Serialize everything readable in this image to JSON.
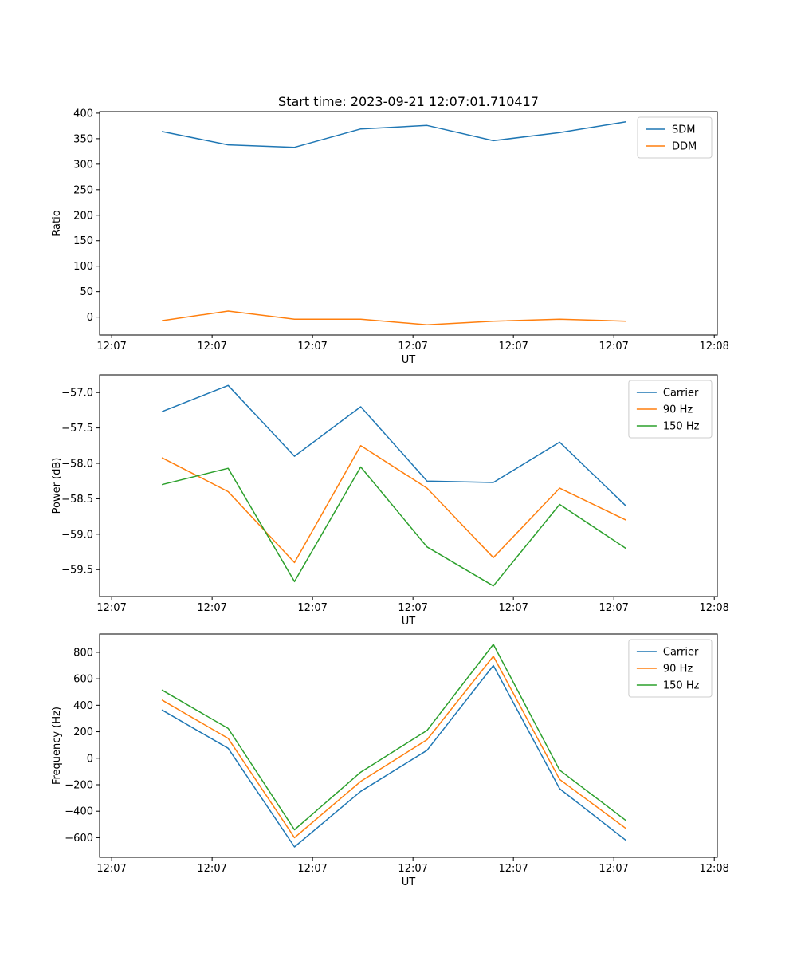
{
  "figure": {
    "background": "#ffffff",
    "title": "Start time: 2023-09-21 12:07:01.710417"
  },
  "chart_data": [
    {
      "type": "line",
      "title": "Start time: 2023-09-21 12:07:01.710417",
      "xlabel": "UT",
      "ylabel": "Ratio",
      "x": [
        5,
        11.6,
        18.2,
        24.8,
        31.4,
        38,
        44.6,
        51.2
      ],
      "xlim": [
        -1.2,
        60.3
      ],
      "xticks": [
        0,
        10,
        20,
        30,
        40,
        50,
        60
      ],
      "xtick_labels": [
        "12:07",
        "12:07",
        "12:07",
        "12:07",
        "12:07",
        "12:07",
        "12:08"
      ],
      "ylim": [
        -35,
        403
      ],
      "yticks": [
        0,
        50,
        100,
        150,
        200,
        250,
        300,
        350,
        400
      ],
      "ytick_labels": [
        "0",
        "50",
        "100",
        "150",
        "200",
        "250",
        "300",
        "350",
        "400"
      ],
      "grid": false,
      "legend_position": "upper right",
      "series": [
        {
          "name": "SDM",
          "color": "#1f77b4",
          "values": [
            364,
            338,
            333,
            369,
            376,
            346,
            362,
            383
          ]
        },
        {
          "name": "DDM",
          "color": "#ff7f0e",
          "values": [
            -7,
            12,
            -4,
            -4,
            -15,
            -8,
            -4,
            -8
          ]
        }
      ]
    },
    {
      "type": "line",
      "title": "",
      "xlabel": "UT",
      "ylabel": "Power (dB)",
      "x": [
        5,
        11.6,
        18.2,
        24.8,
        31.4,
        38,
        44.6,
        51.2
      ],
      "xlim": [
        -1.2,
        60.3
      ],
      "xticks": [
        0,
        10,
        20,
        30,
        40,
        50,
        60
      ],
      "xtick_labels": [
        "12:07",
        "12:07",
        "12:07",
        "12:07",
        "12:07",
        "12:07",
        "12:08"
      ],
      "ylim": [
        -59.88,
        -56.75
      ],
      "yticks": [
        -59.5,
        -59.0,
        -58.5,
        -58.0,
        -57.5,
        -57.0
      ],
      "ytick_labels": [
        "−59.5",
        "−59.0",
        "−58.5",
        "−58.0",
        "−57.5",
        "−57.0"
      ],
      "grid": false,
      "legend_position": "upper right",
      "series": [
        {
          "name": "Carrier",
          "color": "#1f77b4",
          "values": [
            -57.27,
            -56.9,
            -57.9,
            -57.2,
            -58.25,
            -58.27,
            -57.7,
            -58.6
          ]
        },
        {
          "name": "90 Hz",
          "color": "#ff7f0e",
          "values": [
            -57.92,
            -58.4,
            -59.4,
            -57.75,
            -58.35,
            -59.33,
            -58.35,
            -58.8
          ]
        },
        {
          "name": "150 Hz",
          "color": "#2ca02c",
          "values": [
            -58.3,
            -58.07,
            -59.67,
            -58.05,
            -59.18,
            -59.73,
            -58.58,
            -59.2
          ]
        }
      ]
    },
    {
      "type": "line",
      "title": "",
      "xlabel": "UT",
      "ylabel": "Frequency (Hz)",
      "x": [
        5,
        11.6,
        18.2,
        24.8,
        31.4,
        38,
        44.6,
        51.2
      ],
      "xlim": [
        -1.2,
        60.3
      ],
      "xticks": [
        0,
        10,
        20,
        30,
        40,
        50,
        60
      ],
      "xtick_labels": [
        "12:07",
        "12:07",
        "12:07",
        "12:07",
        "12:07",
        "12:07",
        "12:08"
      ],
      "ylim": [
        -748,
        938
      ],
      "yticks": [
        -600,
        -400,
        -200,
        0,
        200,
        400,
        600,
        800
      ],
      "ytick_labels": [
        "−600",
        "−400",
        "−200",
        "0",
        "200",
        "400",
        "600",
        "800"
      ],
      "grid": false,
      "legend_position": "upper right",
      "series": [
        {
          "name": "Carrier",
          "color": "#1f77b4",
          "values": [
            365,
            75,
            -670,
            -250,
            60,
            700,
            -230,
            -620
          ]
        },
        {
          "name": "90 Hz",
          "color": "#ff7f0e",
          "values": [
            440,
            150,
            -600,
            -175,
            140,
            770,
            -160,
            -530
          ]
        },
        {
          "name": "150 Hz",
          "color": "#2ca02c",
          "values": [
            515,
            225,
            -540,
            -105,
            210,
            860,
            -90,
            -470
          ]
        }
      ]
    }
  ]
}
